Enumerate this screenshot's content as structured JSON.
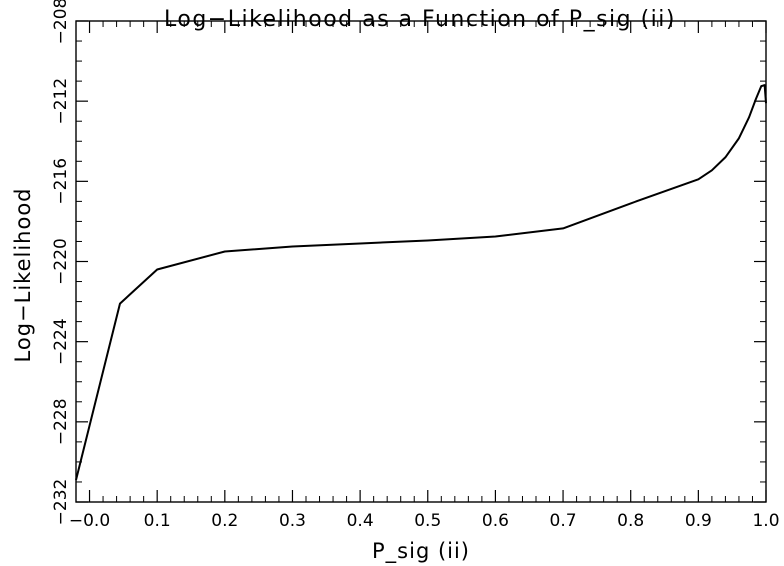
{
  "chart_data": {
    "type": "line",
    "title": "Log−Likelihood as a Function of P_sig (ii)",
    "xlabel": "P_sig (ii)",
    "ylabel": "Log−Likelihood",
    "xlim": [
      -0.02,
      1.0
    ],
    "ylim": [
      -232,
      -208
    ],
    "x_ticks": [
      0.0,
      0.1,
      0.2,
      0.3,
      0.4,
      0.5,
      0.6,
      0.7,
      0.8,
      0.9,
      1.0
    ],
    "x_tick_labels": [
      "−0.0",
      "0.1",
      "0.2",
      "0.3",
      "0.4",
      "0.5",
      "0.6",
      "0.7",
      "0.8",
      "0.9",
      "1.0"
    ],
    "y_ticks": [
      -232,
      -228,
      -224,
      -220,
      -216,
      -212,
      -208
    ],
    "y_tick_labels": [
      "−232",
      "−228",
      "−224",
      "−220",
      "−216",
      "−212",
      "−208"
    ],
    "grid": false,
    "series": [
      {
        "x": [
          -0.02,
          0.045,
          0.1,
          0.2,
          0.3,
          0.4,
          0.5,
          0.6,
          0.7,
          0.8,
          0.9,
          0.92,
          0.94,
          0.96,
          0.975,
          0.985,
          0.993,
          0.998,
          1.0
        ],
        "y": [
          -230.9,
          -222.1,
          -220.4,
          -219.5,
          -219.25,
          -219.1,
          -218.95,
          -218.75,
          -218.35,
          -217.1,
          -215.9,
          -215.45,
          -214.8,
          -213.85,
          -212.8,
          -211.9,
          -211.25,
          -211.2,
          -212.1
        ]
      }
    ],
    "colors": {
      "line": "#000000",
      "axes": "#000000",
      "background": "#ffffff"
    }
  }
}
